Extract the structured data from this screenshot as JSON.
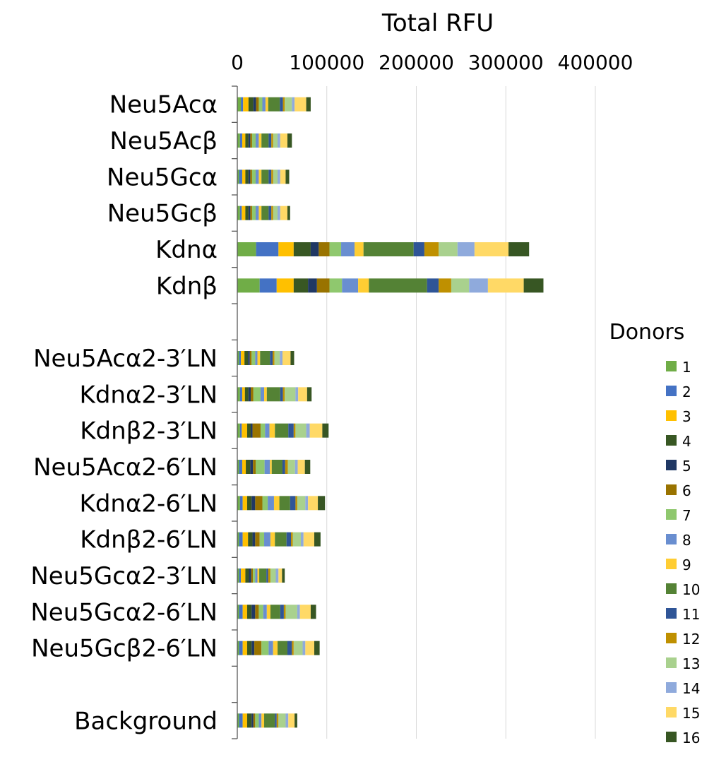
{
  "chart_data": {
    "type": "bar",
    "orientation": "horizontal",
    "stacked": true,
    "title": "Total RFU",
    "xlim": [
      0,
      400000
    ],
    "x_ticks": [
      "0",
      "100000",
      "200000",
      "300000",
      "400000"
    ],
    "grid": true,
    "legend_title": "Donors",
    "legend_position": "right",
    "series_names": [
      "1",
      "2",
      "3",
      "4",
      "5",
      "6",
      "7",
      "8",
      "9",
      "10",
      "11",
      "12",
      "13",
      "14",
      "15",
      "16"
    ],
    "colors": [
      "#70AD47",
      "#4472C4",
      "#FFC000",
      "#385723",
      "#203864",
      "#997300",
      "#8FC86E",
      "#698ED0",
      "#FFCD33",
      "#548235",
      "#2F5597",
      "#BF9000",
      "#A9D18E",
      "#8FAADC",
      "#FFD966",
      "#375623"
    ],
    "categories": [
      "Neu5Acα",
      "Neu5Acβ",
      "Neu5Gcα",
      "Neu5Gcβ",
      "Kdnα",
      "Kdnβ",
      "",
      "Neu5Acα2-3′LN",
      "Kdnα2-3′LN",
      "Kdnβ2-3′LN",
      "Neu5Acα2-6′LN",
      "Kdnα2-6′LN",
      "Kdnβ2-6′LN",
      "Neu5Gcα2-3′LN",
      "Neu5Gcα2-6′LN",
      "Neu5Gcβ2-6′LN",
      "",
      "Background"
    ],
    "values": [
      [
        4000,
        2500,
        6000,
        5500,
        3000,
        3000,
        4000,
        3500,
        3000,
        13000,
        3500,
        2000,
        8000,
        3000,
        13000,
        5000
      ],
      [
        3000,
        2500,
        3500,
        3500,
        2000,
        2000,
        4000,
        3500,
        3000,
        8000,
        3000,
        2000,
        5000,
        3000,
        8000,
        5000
      ],
      [
        2000,
        3500,
        3500,
        3500,
        2000,
        2000,
        4000,
        3500,
        3000,
        8000,
        3000,
        2000,
        5000,
        3000,
        6000,
        4000
      ],
      [
        3000,
        2000,
        4000,
        3500,
        2000,
        2000,
        4000,
        3500,
        3000,
        8000,
        3000,
        2000,
        5000,
        3000,
        8000,
        3000
      ],
      [
        21000,
        25000,
        17000,
        19000,
        9000,
        12000,
        13000,
        15000,
        10000,
        56000,
        12000,
        16000,
        21000,
        19000,
        38000,
        23000
      ],
      [
        25000,
        19000,
        19000,
        16000,
        10000,
        14000,
        14000,
        18000,
        12000,
        65000,
        13000,
        14000,
        20000,
        21000,
        40000,
        22000
      ],
      null,
      [
        2000,
        2000,
        4000,
        4000,
        2000,
        2000,
        4000,
        2500,
        3000,
        11000,
        3000,
        2000,
        6000,
        3000,
        9000,
        4000
      ],
      [
        3000,
        2500,
        3000,
        4000,
        2500,
        3000,
        8000,
        4000,
        3000,
        15000,
        3000,
        2000,
        12000,
        3000,
        10000,
        5000
      ],
      [
        3000,
        2000,
        6000,
        4000,
        2000,
        9000,
        5000,
        5000,
        6000,
        15000,
        6000,
        2000,
        12000,
        4000,
        14000,
        7000
      ],
      [
        2000,
        3500,
        4000,
        5000,
        3000,
        3000,
        10000,
        6000,
        2000,
        12000,
        3000,
        3000,
        8000,
        3000,
        8000,
        6000
      ],
      [
        3000,
        3000,
        5000,
        5000,
        4000,
        8000,
        6000,
        7000,
        6000,
        12000,
        6000,
        2000,
        9000,
        3000,
        11000,
        8000
      ],
      [
        2000,
        4000,
        6000,
        5000,
        3000,
        5000,
        5000,
        7000,
        5000,
        13000,
        5000,
        2000,
        9000,
        3000,
        12000,
        7000
      ],
      [
        2000,
        2000,
        5000,
        4000,
        2500,
        2000,
        2500,
        2500,
        2000,
        8000,
        2000,
        2500,
        6000,
        3000,
        4000,
        3000
      ],
      [
        2000,
        4000,
        5000,
        5000,
        4000,
        4000,
        5000,
        4000,
        4000,
        11000,
        4000,
        2000,
        13000,
        3000,
        12000,
        6000
      ],
      [
        2000,
        4000,
        5000,
        5000,
        3000,
        8000,
        8000,
        5000,
        5000,
        11000,
        5000,
        2000,
        10000,
        3000,
        10000,
        6000
      ],
      null,
      [
        2000,
        4000,
        5000,
        5000,
        2000,
        2000,
        4000,
        3000,
        3000,
        12000,
        2000,
        2000,
        8000,
        3000,
        7000,
        3000
      ]
    ]
  }
}
